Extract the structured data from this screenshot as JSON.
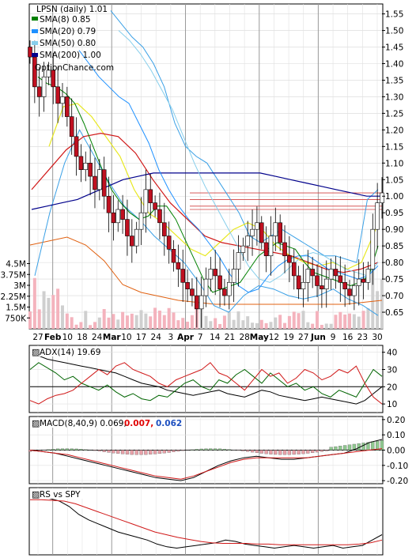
{
  "chart_data": [
    {
      "type": "candlestick",
      "title": "LPSN (daily) 1.01",
      "watermark": "OptionChance.com",
      "y_ticks": [
        "1.55",
        "1.50",
        "1.45",
        "1.40",
        "1.35",
        "1.30",
        "1.25",
        "1.20",
        "1.15",
        "1.10",
        "1.05",
        "1.00",
        "0.95",
        "0.90",
        "0.85",
        "0.80",
        "0.75",
        "0.70",
        "0.65"
      ],
      "ylim": [
        0.6,
        1.58
      ],
      "x_ticks": [
        "27",
        "Feb",
        "10",
        "18",
        "24",
        "Mar",
        "10",
        "17",
        "24",
        "3",
        "Apr",
        "7",
        "14",
        "21",
        "28",
        "May",
        "12",
        "19",
        "27",
        "Jun",
        "9",
        "16",
        "23",
        "30"
      ],
      "legend": [
        {
          "label": "SMA(8) 0.85",
          "color": "#008000"
        },
        {
          "label": "SMA(20) 0.79",
          "color": "#1e90ff"
        },
        {
          "label": "SMA(50) 0.80",
          "color": "#87ceeb"
        },
        {
          "label": "SMA(200) 1.00",
          "color": "#00008b"
        }
      ],
      "horizontal_levels": [
        1.01,
        0.99,
        0.97,
        0.96
      ],
      "price_path": [
        1.42,
        1.33,
        1.3,
        1.36,
        1.38,
        1.33,
        1.28,
        1.3,
        1.24,
        1.18,
        1.12,
        1.08,
        1.1,
        1.06,
        1.02,
        1.08,
        1.0,
        0.95,
        0.92,
        0.96,
        0.93,
        0.88,
        0.85,
        0.9,
        0.95,
        1.02,
        0.98,
        0.96,
        0.92,
        0.88,
        0.84,
        0.8,
        0.78,
        0.74,
        0.72,
        0.7,
        0.66,
        0.7,
        0.75,
        0.78,
        0.76,
        0.72,
        0.7,
        0.74,
        0.78,
        0.83,
        0.85,
        0.88,
        0.9,
        0.92,
        0.86,
        0.82,
        0.88,
        0.92,
        0.86,
        0.82,
        0.8,
        0.76,
        0.72,
        0.74,
        0.78,
        0.76,
        0.73,
        0.72,
        0.75,
        0.78,
        0.76,
        0.74,
        0.72,
        0.7,
        0.73,
        0.75,
        0.74,
        0.78,
        0.9,
        0.98,
        1.01
      ],
      "sma_paths": {
        "sma8": [
          1.36,
          1.34,
          1.33,
          1.31,
          1.28,
          1.22,
          1.15,
          1.08,
          1.02,
          0.98,
          0.95,
          0.93,
          0.94,
          0.97,
          0.97,
          0.93,
          0.87,
          0.81,
          0.75,
          0.71,
          0.72,
          0.73,
          0.74,
          0.78,
          0.82,
          0.84,
          0.86,
          0.85,
          0.84,
          0.8,
          0.77,
          0.76,
          0.75,
          0.74,
          0.73,
          0.74,
          0.76,
          0.85
        ],
        "sma20": [
          1.44,
          1.4,
          1.36,
          1.33,
          1.3,
          1.28,
          1.22,
          1.16,
          1.08,
          1.02,
          0.97,
          0.93,
          0.9,
          0.86,
          0.82,
          0.77,
          0.73,
          0.71,
          0.72,
          0.76,
          0.79,
          0.81,
          0.82,
          0.82,
          0.8,
          0.78,
          0.77,
          0.76,
          0.75,
          0.76,
          0.79
        ],
        "sma50": [
          1.5,
          1.47,
          1.43,
          1.38,
          1.32,
          1.26,
          1.18,
          1.1,
          1.03,
          0.97,
          0.91,
          0.85,
          0.79,
          0.75,
          0.74,
          0.76,
          0.79,
          0.82,
          0.83,
          0.82,
          0.8,
          0.78,
          0.77,
          0.76,
          0.8
        ],
        "sma200": [
          0.96,
          0.97,
          0.98,
          0.99,
          1.01,
          1.03,
          1.05,
          1.06,
          1.07,
          1.07,
          1.07,
          1.07,
          1.07,
          1.07,
          1.07,
          1.07,
          1.06,
          1.05,
          1.04,
          1.03,
          1.02,
          1.01,
          1.0,
          1.0
        ],
        "bb_upper": [
          1.56,
          1.52,
          1.48,
          1.45,
          1.4,
          1.33,
          1.22,
          1.15,
          1.12,
          1.1,
          1.05,
          1.0,
          0.95,
          0.88,
          0.86,
          0.88,
          0.9,
          0.88,
          0.86,
          0.84,
          0.82,
          0.82,
          0.81,
          0.8,
          0.99,
          1.02
        ],
        "bb_lower": [
          0.76,
          0.95,
          1.1,
          1.2,
          1.12,
          1.04,
          0.97,
          0.93,
          0.88,
          0.84,
          0.8,
          0.74,
          0.67,
          0.65,
          0.7,
          0.73,
          0.72,
          0.7,
          0.69,
          0.7,
          0.72,
          0.69,
          0.67,
          0.64
        ],
        "yellow": [
          1.15,
          1.27,
          1.28,
          1.24,
          1.18,
          1.12,
          1.02,
          0.95,
          0.92,
          0.88,
          0.84,
          0.82,
          0.86,
          0.9,
          0.92,
          0.9,
          0.85,
          0.82,
          0.8,
          0.79,
          0.8,
          0.78,
          0.8,
          0.9
        ]
      },
      "volume": {
        "y_ticks": [
          "4.5M",
          "3.75M",
          "3M",
          "2.25M",
          "1.5M",
          "750K"
        ],
        "ylim": [
          0,
          4.8
        ]
      }
    },
    {
      "type": "line",
      "title": "ADX(14) 19.69",
      "y_ticks": [
        "40",
        "30",
        "20",
        "10"
      ],
      "ylim": [
        5,
        44
      ],
      "reference_line": 20
    },
    {
      "type": "line",
      "title": "MACD(8,40,9) 0.069,",
      "values_label": {
        "red": "0.007,",
        "blue": "0.062"
      },
      "y_ticks": [
        "0.20",
        "0.10",
        "0.00",
        "-0.10",
        "-0.20"
      ],
      "ylim": [
        -0.22,
        0.22
      ]
    },
    {
      "type": "line",
      "title": "RS vs SPY",
      "y_ticks": [],
      "ylim": [
        0,
        1
      ]
    }
  ]
}
